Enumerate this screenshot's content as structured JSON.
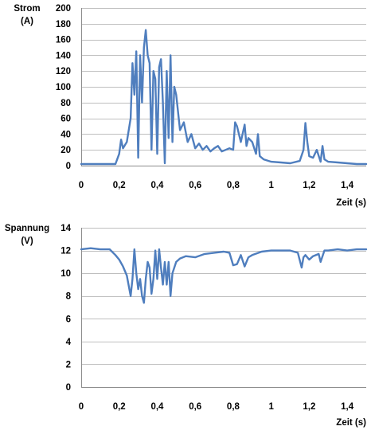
{
  "colors": {
    "series": "#4F7EBE",
    "grid": "#BFBFBF",
    "text": "#000000"
  },
  "chart_data": [
    {
      "type": "line",
      "ylabel_line1": "Strom",
      "ylabel_line2": "(A)",
      "xlabel": "Zeit (s)",
      "xlim": [
        0,
        1.5
      ],
      "ylim": [
        0,
        200
      ],
      "grid": true,
      "x_ticks": [
        "0",
        "0,2",
        "0,4",
        "0,6",
        "0,8",
        "1",
        "1,2",
        "1,4"
      ],
      "y_ticks": [
        "0",
        "20",
        "40",
        "60",
        "80",
        "100",
        "120",
        "140",
        "160",
        "180",
        "200"
      ],
      "series": [
        {
          "x": [
            0,
            0.1,
            0.18,
            0.2,
            0.21,
            0.22,
            0.24,
            0.26,
            0.27,
            0.28,
            0.29,
            0.3,
            0.31,
            0.32,
            0.33,
            0.34,
            0.35,
            0.36,
            0.37,
            0.38,
            0.39,
            0.4,
            0.41,
            0.42,
            0.43,
            0.44,
            0.45,
            0.46,
            0.47,
            0.48,
            0.49,
            0.5,
            0.52,
            0.54,
            0.56,
            0.58,
            0.6,
            0.62,
            0.64,
            0.66,
            0.68,
            0.7,
            0.72,
            0.74,
            0.76,
            0.78,
            0.8,
            0.81,
            0.82,
            0.84,
            0.86,
            0.87,
            0.88,
            0.9,
            0.92,
            0.93,
            0.94,
            0.96,
            1.0,
            1.05,
            1.1,
            1.15,
            1.17,
            1.18,
            1.19,
            1.2,
            1.22,
            1.24,
            1.26,
            1.27,
            1.28,
            1.3,
            1.35,
            1.4,
            1.45,
            1.5
          ],
          "values": [
            2,
            2,
            2,
            15,
            33,
            22,
            30,
            60,
            130,
            90,
            145,
            10,
            140,
            80,
            150,
            172,
            140,
            130,
            20,
            120,
            110,
            15,
            125,
            135,
            80,
            3,
            120,
            35,
            140,
            30,
            100,
            90,
            45,
            55,
            30,
            40,
            22,
            28,
            20,
            25,
            18,
            22,
            25,
            18,
            20,
            22,
            20,
            55,
            50,
            30,
            52,
            25,
            35,
            30,
            15,
            40,
            12,
            8,
            5,
            4,
            3,
            6,
            20,
            54,
            30,
            12,
            10,
            20,
            5,
            25,
            8,
            5,
            4,
            3,
            2,
            2
          ]
        }
      ]
    },
    {
      "type": "line",
      "ylabel_line1": "Spannung",
      "ylabel_line2": "(V)",
      "xlabel": "Zeit (s)",
      "xlim": [
        0,
        1.5
      ],
      "ylim": [
        0,
        14
      ],
      "grid": true,
      "x_ticks": [
        "0",
        "0,2",
        "0,4",
        "0,6",
        "0,8",
        "1",
        "1,2",
        "1,4"
      ],
      "y_ticks": [
        "0",
        "2",
        "4",
        "6",
        "8",
        "10",
        "12",
        "14"
      ],
      "series": [
        {
          "x": [
            0,
            0.05,
            0.1,
            0.15,
            0.18,
            0.2,
            0.22,
            0.24,
            0.26,
            0.27,
            0.28,
            0.29,
            0.3,
            0.31,
            0.32,
            0.33,
            0.34,
            0.35,
            0.36,
            0.37,
            0.38,
            0.39,
            0.4,
            0.41,
            0.42,
            0.43,
            0.44,
            0.45,
            0.46,
            0.47,
            0.48,
            0.5,
            0.52,
            0.55,
            0.6,
            0.65,
            0.7,
            0.75,
            0.78,
            0.8,
            0.82,
            0.84,
            0.86,
            0.88,
            0.9,
            0.95,
            1.0,
            1.05,
            1.1,
            1.14,
            1.16,
            1.17,
            1.18,
            1.2,
            1.22,
            1.25,
            1.26,
            1.28,
            1.3,
            1.35,
            1.4,
            1.45,
            1.5
          ],
          "values": [
            12.1,
            12.2,
            12.1,
            12.1,
            11.6,
            11.2,
            10.6,
            9.8,
            8.0,
            9.5,
            12.1,
            10.0,
            8.6,
            9.5,
            8.0,
            7.4,
            9.5,
            11.0,
            10.5,
            8.2,
            9.5,
            12.0,
            9.5,
            12.1,
            10.5,
            9.0,
            11.0,
            9.0,
            11.0,
            8.0,
            10.0,
            11.0,
            11.3,
            11.5,
            11.4,
            11.7,
            11.8,
            11.9,
            11.8,
            10.7,
            10.8,
            11.6,
            10.6,
            11.4,
            11.6,
            11.9,
            12.0,
            12.0,
            12.0,
            11.8,
            10.5,
            11.4,
            11.6,
            11.2,
            11.5,
            11.7,
            11.0,
            12.0,
            12.0,
            12.1,
            12.0,
            12.1,
            12.1
          ]
        }
      ]
    }
  ]
}
